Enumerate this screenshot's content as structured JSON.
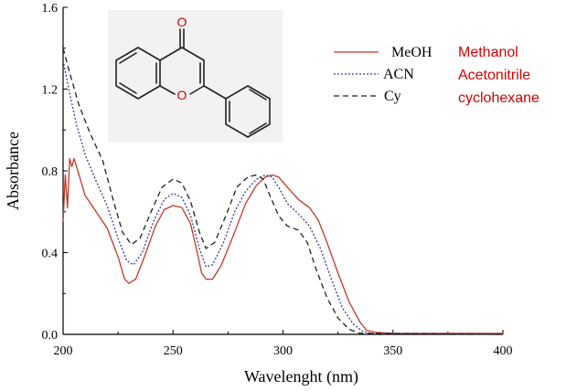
{
  "chart_data": {
    "type": "line",
    "xlabel": "Wavelenght (nm)",
    "ylabel": "Absorbance",
    "xlim": [
      200,
      400
    ],
    "ylim": [
      0.0,
      1.6
    ],
    "xticks": [
      "200",
      "250",
      "300",
      "350",
      "400"
    ],
    "yticks": [
      "0.0",
      "0.4",
      "0.8",
      "1.2",
      "1.6"
    ],
    "grid": false,
    "legend": "top-right",
    "series": [
      {
        "name": "MeOH",
        "color": "#c0392b",
        "style": "solid",
        "points": [
          [
            200,
            0.55
          ],
          [
            201,
            0.78
          ],
          [
            202,
            0.62
          ],
          [
            203,
            0.86
          ],
          [
            204,
            0.82
          ],
          [
            205,
            0.86
          ],
          [
            207,
            0.79
          ],
          [
            210,
            0.68
          ],
          [
            215,
            0.6
          ],
          [
            220,
            0.52
          ],
          [
            225,
            0.38
          ],
          [
            228,
            0.27
          ],
          [
            230,
            0.25
          ],
          [
            233,
            0.27
          ],
          [
            237,
            0.38
          ],
          [
            242,
            0.53
          ],
          [
            246,
            0.61
          ],
          [
            250,
            0.63
          ],
          [
            254,
            0.62
          ],
          [
            258,
            0.54
          ],
          [
            261,
            0.4
          ],
          [
            263,
            0.3
          ],
          [
            265,
            0.27
          ],
          [
            268,
            0.27
          ],
          [
            272,
            0.34
          ],
          [
            278,
            0.5
          ],
          [
            283,
            0.64
          ],
          [
            288,
            0.73
          ],
          [
            292,
            0.77
          ],
          [
            295,
            0.78
          ],
          [
            298,
            0.77
          ],
          [
            302,
            0.72
          ],
          [
            307,
            0.66
          ],
          [
            312,
            0.62
          ],
          [
            316,
            0.56
          ],
          [
            320,
            0.45
          ],
          [
            325,
            0.3
          ],
          [
            330,
            0.16
          ],
          [
            335,
            0.06
          ],
          [
            338,
            0.02
          ],
          [
            342,
            0.01
          ],
          [
            350,
            0.005
          ],
          [
            370,
            0.005
          ],
          [
            400,
            0.005
          ]
        ]
      },
      {
        "name": "ACN",
        "color": "#3a3a8c",
        "style": "dash-dot",
        "points": [
          [
            200,
            1.34
          ],
          [
            203,
            1.18
          ],
          [
            206,
            1.03
          ],
          [
            210,
            0.88
          ],
          [
            215,
            0.75
          ],
          [
            220,
            0.63
          ],
          [
            225,
            0.47
          ],
          [
            229,
            0.36
          ],
          [
            232,
            0.34
          ],
          [
            236,
            0.4
          ],
          [
            241,
            0.55
          ],
          [
            246,
            0.66
          ],
          [
            250,
            0.69
          ],
          [
            254,
            0.67
          ],
          [
            258,
            0.58
          ],
          [
            262,
            0.42
          ],
          [
            265,
            0.33
          ],
          [
            268,
            0.34
          ],
          [
            273,
            0.45
          ],
          [
            278,
            0.6
          ],
          [
            283,
            0.7
          ],
          [
            288,
            0.76
          ],
          [
            292,
            0.78
          ],
          [
            295,
            0.77
          ],
          [
            298,
            0.72
          ],
          [
            302,
            0.64
          ],
          [
            307,
            0.59
          ],
          [
            312,
            0.53
          ],
          [
            317,
            0.42
          ],
          [
            322,
            0.27
          ],
          [
            327,
            0.13
          ],
          [
            332,
            0.05
          ],
          [
            336,
            0.015
          ],
          [
            340,
            0.005
          ],
          [
            400,
            0.0
          ]
        ]
      },
      {
        "name": "Cy",
        "color": "#222222",
        "style": "dashed",
        "points": [
          [
            200,
            1.4
          ],
          [
            203,
            1.28
          ],
          [
            207,
            1.13
          ],
          [
            212,
            0.99
          ],
          [
            218,
            0.85
          ],
          [
            223,
            0.65
          ],
          [
            227,
            0.5
          ],
          [
            231,
            0.44
          ],
          [
            235,
            0.47
          ],
          [
            240,
            0.6
          ],
          [
            245,
            0.72
          ],
          [
            250,
            0.76
          ],
          [
            254,
            0.74
          ],
          [
            258,
            0.65
          ],
          [
            262,
            0.5
          ],
          [
            265,
            0.42
          ],
          [
            269,
            0.45
          ],
          [
            274,
            0.58
          ],
          [
            279,
            0.72
          ],
          [
            284,
            0.77
          ],
          [
            288,
            0.78
          ],
          [
            291,
            0.76
          ],
          [
            294,
            0.68
          ],
          [
            298,
            0.58
          ],
          [
            302,
            0.53
          ],
          [
            307,
            0.51
          ],
          [
            311,
            0.45
          ],
          [
            315,
            0.32
          ],
          [
            320,
            0.18
          ],
          [
            325,
            0.08
          ],
          [
            330,
            0.025
          ],
          [
            335,
            0.005
          ],
          [
            400,
            0.0
          ]
        ]
      }
    ]
  },
  "legend_annotations": [
    "Methanol",
    "Acetonitrile",
    "cyclohexane"
  ],
  "annotation_color": "#d60000",
  "molecule": {
    "atom_labels": [
      "O",
      "O"
    ],
    "bond_color": "#222222",
    "inset_background": "#f2f2f2"
  }
}
